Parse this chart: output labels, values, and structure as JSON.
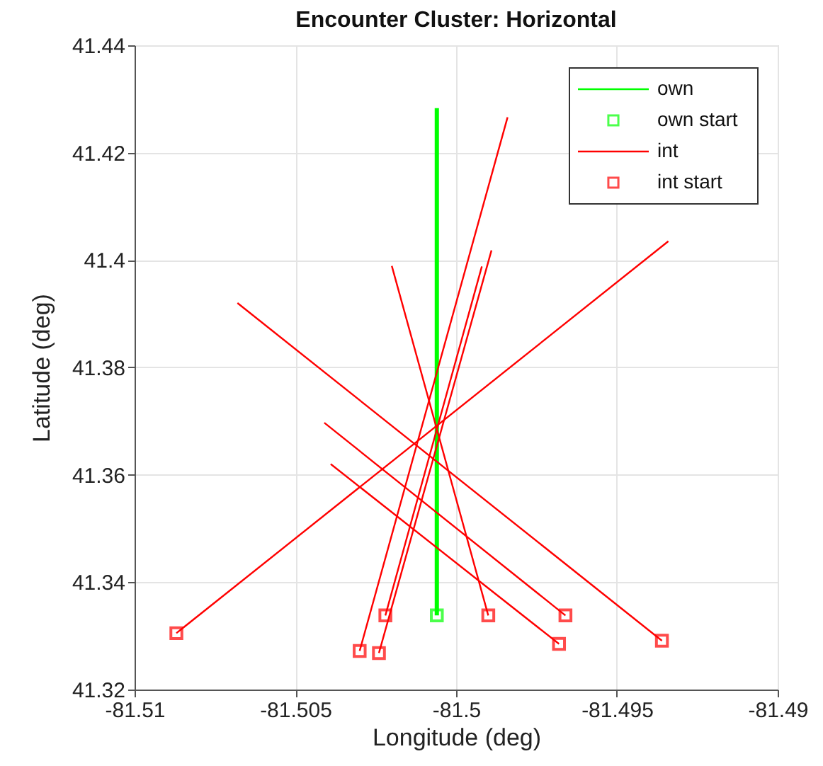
{
  "chart_data": {
    "type": "line",
    "title": "Encounter Cluster: Horizontal",
    "xlabel": "Longitude (deg)",
    "ylabel": "Latitude (deg)",
    "xlim": [
      -81.51,
      -81.49
    ],
    "xticks": [
      -81.51,
      -81.505,
      -81.5,
      -81.495,
      -81.49
    ],
    "ylim": [
      41.32,
      41.44
    ],
    "yticks": [
      41.32,
      41.34,
      41.36,
      41.38,
      41.4,
      41.42,
      41.44
    ],
    "grid": true,
    "legend": "top right",
    "series": [
      {
        "name": "own",
        "color": "#00ff00",
        "x": [
          -81.5006,
          -81.5006
        ],
        "values": [
          41.3338,
          41.4283
        ]
      },
      {
        "name": "own start",
        "type": "scatter",
        "marker": "square",
        "color": "#00ff00",
        "x": [
          -81.5006
        ],
        "values": [
          41.3338
        ]
      },
      {
        "name": "int",
        "color": "#ff0000",
        "x": [
          -81.5087,
          -81.4934,
          null,
          -81.503,
          -81.4984,
          null,
          -81.5024,
          -81.4989,
          null,
          -81.5022,
          -81.4992,
          null,
          -81.499,
          -81.502,
          null,
          -81.4966,
          -81.5041,
          null,
          -81.4968,
          -81.5039,
          null,
          -81.4936,
          -81.5068
        ],
        "values": [
          41.3305,
          41.4035,
          null,
          41.3272,
          41.4266,
          null,
          41.3268,
          41.4018,
          null,
          41.3338,
          41.3988,
          null,
          41.3338,
          41.3989,
          null,
          41.3338,
          41.3697,
          null,
          41.3285,
          41.362,
          null,
          41.3291,
          41.392
        ]
      },
      {
        "name": "int start",
        "type": "scatter",
        "marker": "square",
        "color": "#ff0000",
        "x": [
          -81.5087,
          -81.503,
          -81.5024,
          -81.5022,
          -81.499,
          -81.4966,
          -81.4968,
          -81.4936
        ],
        "values": [
          41.3305,
          41.3272,
          41.3268,
          41.3338,
          41.3338,
          41.3338,
          41.3285,
          41.3291
        ]
      }
    ]
  }
}
